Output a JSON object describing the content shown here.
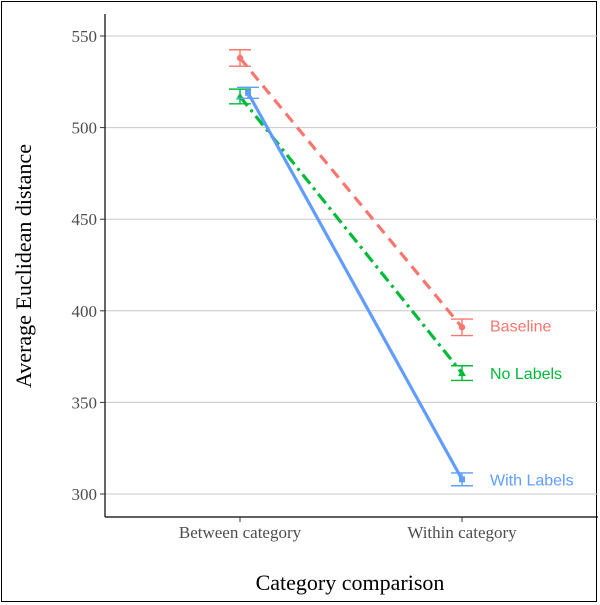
{
  "chart_data": {
    "type": "line",
    "title": "",
    "xlabel": "Category comparison",
    "ylabel": "Average Euclidean distance",
    "categories": [
      "Between category",
      "Within category"
    ],
    "yticks": [
      300,
      350,
      400,
      450,
      500,
      550
    ],
    "ylim": [
      293,
      562
    ],
    "grid": "horizontal",
    "legend": "direct labels at line ends",
    "series": [
      {
        "name": "Baseline",
        "color": "#F8766D",
        "dash": "dashed",
        "marker": "circle",
        "values": [
          538,
          391
        ],
        "errors": [
          4.5,
          4.5
        ]
      },
      {
        "name": "No Labels",
        "color": "#00BA38",
        "dash": "dashdot",
        "marker": "triangle",
        "values": [
          517,
          366
        ],
        "errors": [
          4,
          4
        ]
      },
      {
        "name": "With Labels",
        "color": "#619CFF",
        "dash": "solid",
        "marker": "square",
        "values": [
          519,
          308
        ],
        "errors": [
          3,
          3.5
        ]
      }
    ]
  }
}
